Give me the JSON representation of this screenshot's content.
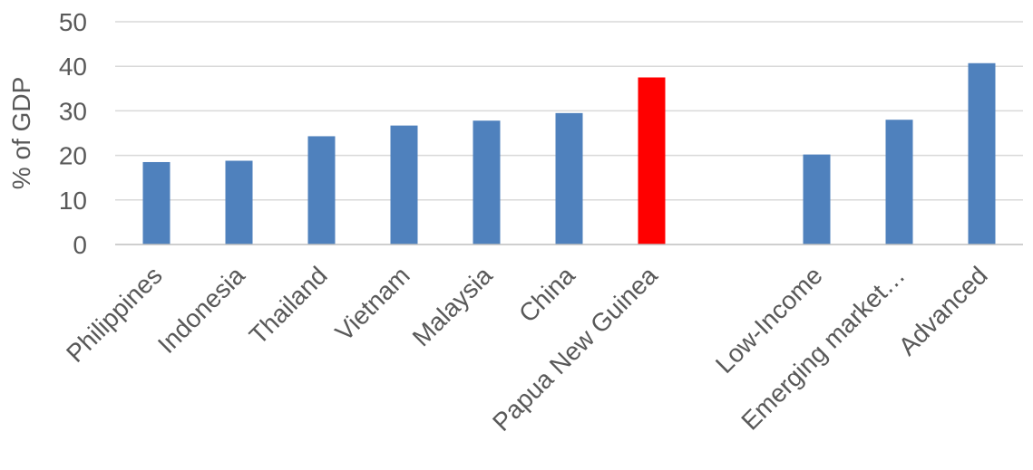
{
  "chart_data": {
    "type": "bar",
    "title": "",
    "xlabel": "",
    "ylabel": "% of GDP",
    "ylim": [
      0,
      50
    ],
    "yticks": [
      0,
      10,
      20,
      30,
      40,
      50
    ],
    "grid": true,
    "legend": "none",
    "categories": [
      "Philippines",
      "Indonesia",
      "Thailand",
      "Vietnam",
      "Malaysia",
      "China",
      "Papua New Guinea",
      "",
      "Low-Income",
      "Emerging market…",
      "Advanced"
    ],
    "values": [
      18.5,
      18.8,
      24.3,
      26.7,
      27.8,
      29.5,
      37.5,
      null,
      20.2,
      28.0,
      40.7
    ],
    "colors": {
      "default": "#4f81bd",
      "highlight": "#ff0000"
    },
    "highlight_category": "Papua New Guinea"
  }
}
